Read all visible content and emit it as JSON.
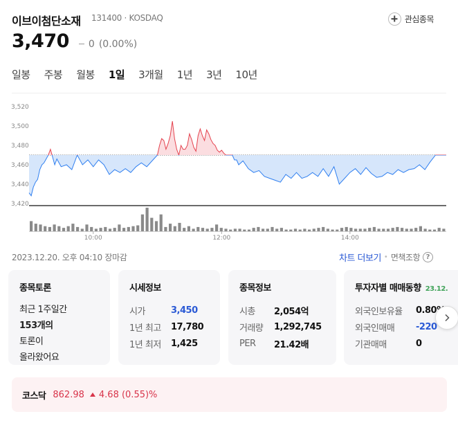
{
  "stock": {
    "name": "이브이첨단소재",
    "meta": "131400 · KOSDAQ",
    "watch_label": "관심종목",
    "price": "3,470",
    "change_value": "0",
    "change_pct": "(0.00%)"
  },
  "periods": [
    "일봉",
    "주봉",
    "월봉",
    "1일",
    "3개월",
    "1년",
    "3년",
    "10년"
  ],
  "active_period": "1일",
  "chart_data": {
    "type": "line",
    "xlabel": "",
    "ylabel": "",
    "y_ticks": [
      "3,520",
      "3,500",
      "3,480",
      "3,460",
      "3,440",
      "3,420"
    ],
    "x_ticks": [
      "10:00",
      "12:00",
      "14:00"
    ],
    "ylim": [
      3420,
      3520
    ],
    "baseline": 3470,
    "x_range_minutes": [
      540,
      930
    ],
    "series": [
      {
        "x": [
          540,
          542,
          544,
          546,
          548,
          550,
          552,
          554,
          556,
          558,
          560,
          562,
          564,
          566,
          568,
          570,
          575,
          580,
          585,
          590,
          595,
          600,
          605,
          610,
          615,
          620,
          625,
          630,
          635,
          640,
          645,
          650,
          655,
          660,
          662,
          664,
          666,
          668,
          670,
          672,
          674,
          676,
          678,
          680,
          682,
          684,
          686,
          688,
          690,
          692,
          694,
          696,
          698,
          700,
          702,
          704,
          706,
          708,
          710,
          712,
          714,
          716,
          718,
          720,
          722,
          724,
          726,
          728,
          730,
          732,
          734,
          736,
          738,
          740,
          745,
          750,
          755,
          760,
          765,
          770,
          775,
          780,
          785,
          790,
          795,
          800,
          805,
          810,
          815,
          820,
          825,
          830,
          835,
          840,
          845,
          850,
          855,
          860,
          865,
          870,
          875,
          880,
          885,
          890,
          895,
          900,
          905,
          910,
          915,
          920,
          925,
          930
        ],
        "values": [
          3431,
          3428,
          3437,
          3442,
          3445,
          3455,
          3460,
          3462,
          3466,
          3470,
          3476,
          3468,
          3460,
          3466,
          3462,
          3458,
          3460,
          3455,
          3470,
          3460,
          3465,
          3458,
          3465,
          3460,
          3450,
          3455,
          3452,
          3456,
          3452,
          3458,
          3462,
          3458,
          3464,
          3470,
          3480,
          3487,
          3485,
          3476,
          3482,
          3490,
          3505,
          3487,
          3476,
          3470,
          3480,
          3476,
          3476,
          3480,
          3492,
          3486,
          3478,
          3474,
          3490,
          3497,
          3490,
          3485,
          3496,
          3492,
          3486,
          3482,
          3480,
          3475,
          3473,
          3475,
          3472,
          3470,
          3470,
          3470,
          3470,
          3465,
          3465,
          3460,
          3462,
          3464,
          3456,
          3452,
          3454,
          3448,
          3446,
          3444,
          3442,
          3450,
          3446,
          3452,
          3446,
          3448,
          3452,
          3448,
          3456,
          3448,
          3458,
          3440,
          3446,
          3452,
          3456,
          3450,
          3457,
          3451,
          3447,
          3448,
          3452,
          3450,
          3455,
          3452,
          3455,
          3456,
          3460,
          3455,
          3463,
          3470,
          3470,
          3470
        ]
      }
    ],
    "volume": [
      12,
      9,
      8,
      6,
      5,
      8,
      6,
      4,
      6,
      9,
      5,
      3,
      8,
      5,
      3,
      4,
      5,
      3,
      4,
      8,
      4,
      5,
      6,
      7,
      20,
      28,
      16,
      12,
      20,
      5,
      9,
      6,
      10,
      4,
      6,
      3,
      5,
      4,
      3,
      4,
      8,
      4,
      3,
      2,
      3,
      3,
      2,
      2,
      4,
      5,
      3,
      3,
      5,
      3,
      4,
      2,
      2,
      3,
      2,
      3,
      2,
      3,
      4,
      5,
      3,
      2,
      2,
      4,
      5,
      4,
      3,
      3,
      3,
      4,
      5,
      3,
      3,
      3,
      4,
      5,
      4,
      3,
      3,
      4,
      6,
      3,
      2,
      2,
      4,
      3
    ],
    "colors": {
      "up": "#e4424e",
      "up_fill": "#fbdde0",
      "down": "#2f7ff0",
      "down_fill": "#d6e6fb",
      "volume": "#8a8a8a"
    }
  },
  "status": {
    "updated": "2023.12.20. 오후 04:10 장마감",
    "chart_more": "차트 더보기",
    "disclaimer": "면책조항"
  },
  "cards": {
    "discussion": {
      "title": "종목토론",
      "line1": "최근 1주일간",
      "count": "153개의",
      "line3": "토론이",
      "line4": "올라왔어요"
    },
    "market": {
      "title": "시세정보",
      "rows": [
        {
          "k": "시가",
          "v": "3,450"
        },
        {
          "k": "1년 최고",
          "v": "17,780"
        },
        {
          "k": "1년 최저",
          "v": "1,425"
        }
      ]
    },
    "info": {
      "title": "종목정보",
      "rows": [
        {
          "k": "시총",
          "v": "2,054억"
        },
        {
          "k": "거래량",
          "v": "1,292,745"
        },
        {
          "k": "PER",
          "v": "21.42배"
        }
      ]
    },
    "investor": {
      "title": "투자자별 매매동향",
      "date_tag": "23.12.",
      "rows": [
        {
          "k": "외국인보유율",
          "v": "0.80%"
        },
        {
          "k": "외국인매매",
          "v": "-220"
        },
        {
          "k": "기관매매",
          "v": "0"
        }
      ]
    }
  },
  "index": {
    "name": "코스닥",
    "value": "862.98",
    "change": "4.68 (0.55)%"
  }
}
